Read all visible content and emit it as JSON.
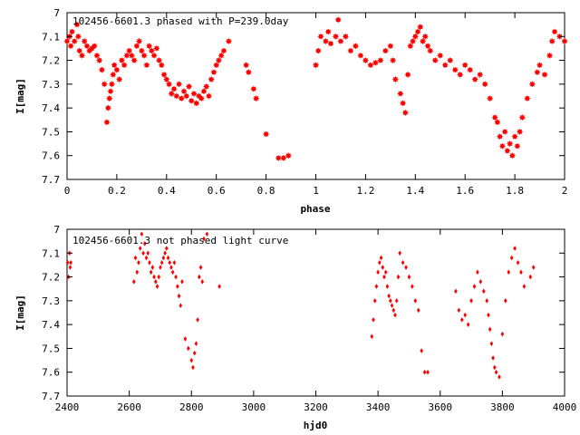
{
  "chart_data": [
    {
      "type": "scatter",
      "title": "102456-6601.3 phased with P=239.0day",
      "xlabel": "phase",
      "ylabel": "I[mag]",
      "xlim": [
        0,
        2
      ],
      "ylim": [
        7.7,
        7.0
      ],
      "y_inverted": true,
      "grid": false,
      "marker": "star",
      "color": "#ff0000",
      "xticks": [
        "0",
        "0.2",
        "0.4",
        "0.6",
        "0.8",
        "1",
        "1.2",
        "1.4",
        "1.6",
        "1.8",
        "2"
      ],
      "yticks": [
        "7",
        "7.1",
        "7.2",
        "7.3",
        "7.4",
        "7.5",
        "7.6",
        "7.7"
      ],
      "series": [
        {
          "x": [
            0.0,
            0.01,
            0.015,
            0.02,
            0.03,
            0.04,
            0.045,
            0.05,
            0.06,
            0.07,
            0.08,
            0.09,
            0.1,
            0.11,
            0.12,
            0.13,
            0.14,
            0.15,
            0.16,
            0.165,
            0.17,
            0.175,
            0.18,
            0.185,
            0.19,
            0.2,
            0.21,
            0.22,
            0.23,
            0.24,
            0.25,
            0.26,
            0.27,
            0.28,
            0.29,
            0.3,
            0.31,
            0.32,
            0.33,
            0.34,
            0.35,
            0.36,
            0.37,
            0.38,
            0.39,
            0.4,
            0.41,
            0.42,
            0.43,
            0.44,
            0.45,
            0.46,
            0.47,
            0.48,
            0.49,
            0.5,
            0.51,
            0.52,
            0.53,
            0.54,
            0.55,
            0.56,
            0.57,
            0.58,
            0.59,
            0.6,
            0.61,
            0.62,
            0.63,
            0.65,
            0.72,
            0.73,
            0.75,
            0.76,
            0.8,
            0.85,
            0.87,
            0.89,
            1.0,
            1.01,
            1.02,
            1.04,
            1.05,
            1.06,
            1.08,
            1.09,
            1.1,
            1.12,
            1.14,
            1.16,
            1.18,
            1.2,
            1.22,
            1.24,
            1.26,
            1.28,
            1.3,
            1.31,
            1.32,
            1.34,
            1.35,
            1.36,
            1.37,
            1.38,
            1.39,
            1.4,
            1.41,
            1.42,
            1.43,
            1.44,
            1.45,
            1.46,
            1.48,
            1.5,
            1.52,
            1.54,
            1.56,
            1.58,
            1.6,
            1.62,
            1.64,
            1.66,
            1.68,
            1.7,
            1.72,
            1.73,
            1.74,
            1.75,
            1.76,
            1.77,
            1.78,
            1.79,
            1.8,
            1.81,
            1.82,
            1.83,
            1.85,
            1.87,
            1.89,
            1.9,
            1.92,
            1.94,
            1.95,
            1.96,
            1.98,
            2.0
          ],
          "y": [
            7.12,
            7.1,
            7.14,
            7.08,
            7.12,
            7.05,
            7.1,
            7.16,
            7.18,
            7.12,
            7.14,
            7.16,
            7.15,
            7.14,
            7.18,
            7.2,
            7.24,
            7.3,
            7.46,
            7.4,
            7.36,
            7.33,
            7.3,
            7.26,
            7.22,
            7.24,
            7.28,
            7.2,
            7.22,
            7.18,
            7.16,
            7.18,
            7.2,
            7.14,
            7.12,
            7.16,
            7.18,
            7.22,
            7.14,
            7.16,
            7.18,
            7.15,
            7.2,
            7.22,
            7.26,
            7.28,
            7.3,
            7.34,
            7.32,
            7.35,
            7.3,
            7.36,
            7.33,
            7.35,
            7.31,
            7.37,
            7.34,
            7.38,
            7.35,
            7.36,
            7.33,
            7.31,
            7.35,
            7.28,
            7.25,
            7.22,
            7.2,
            7.18,
            7.16,
            7.12,
            7.22,
            7.25,
            7.32,
            7.36,
            7.51,
            7.61,
            7.61,
            7.6,
            7.22,
            7.16,
            7.1,
            7.12,
            7.08,
            7.13,
            7.1,
            7.03,
            7.12,
            7.1,
            7.16,
            7.14,
            7.18,
            7.2,
            7.22,
            7.21,
            7.2,
            7.16,
            7.14,
            7.2,
            7.28,
            7.34,
            7.38,
            7.42,
            7.26,
            7.14,
            7.12,
            7.1,
            7.08,
            7.06,
            7.12,
            7.1,
            7.14,
            7.16,
            7.2,
            7.18,
            7.22,
            7.2,
            7.24,
            7.26,
            7.22,
            7.24,
            7.28,
            7.26,
            7.3,
            7.36,
            7.44,
            7.46,
            7.52,
            7.56,
            7.5,
            7.58,
            7.55,
            7.6,
            7.52,
            7.56,
            7.5,
            7.44,
            7.36,
            7.3,
            7.25,
            7.22,
            7.26,
            7.18,
            7.12,
            7.08,
            7.1,
            7.12
          ]
        }
      ]
    },
    {
      "type": "scatter",
      "title": "102456-6601.3 not phased light curve",
      "xlabel": "hjd0",
      "ylabel": "I[mag]",
      "xlim": [
        2400,
        4000
      ],
      "ylim": [
        7.7,
        7.0
      ],
      "y_inverted": true,
      "grid": false,
      "marker": "diamond",
      "color": "#ff0000",
      "xticks": [
        "2400",
        "2600",
        "2800",
        "3000",
        "3200",
        "3400",
        "3600",
        "3800",
        "4000"
      ],
      "yticks": [
        "7",
        "7.1",
        "7.2",
        "7.3",
        "7.4",
        "7.5",
        "7.6",
        "7.7"
      ],
      "series": [
        {
          "x": [
            2402,
            2405,
            2408,
            2410,
            2412,
            2615,
            2620,
            2625,
            2630,
            2635,
            2640,
            2645,
            2650,
            2655,
            2660,
            2665,
            2670,
            2675,
            2680,
            2685,
            2690,
            2695,
            2700,
            2705,
            2710,
            2715,
            2720,
            2725,
            2730,
            2735,
            2740,
            2745,
            2750,
            2755,
            2760,
            2765,
            2770,
            2780,
            2790,
            2800,
            2805,
            2810,
            2815,
            2820,
            2825,
            2830,
            2835,
            2840,
            2850,
            2890,
            3380,
            3385,
            3390,
            3395,
            3400,
            3405,
            3410,
            3415,
            3420,
            3425,
            3430,
            3435,
            3440,
            3445,
            3450,
            3455,
            3460,
            3465,
            3470,
            3480,
            3490,
            3500,
            3510,
            3520,
            3530,
            3540,
            3550,
            3560,
            3650,
            3660,
            3670,
            3680,
            3690,
            3700,
            3710,
            3720,
            3730,
            3740,
            3750,
            3755,
            3760,
            3765,
            3770,
            3775,
            3780,
            3790,
            3800,
            3810,
            3820,
            3830,
            3840,
            3850,
            3860,
            3870,
            3890,
            3900
          ],
          "y": [
            7.14,
            7.2,
            7.1,
            7.16,
            7.14,
            7.22,
            7.12,
            7.18,
            7.14,
            7.08,
            7.02,
            7.1,
            7.06,
            7.12,
            7.1,
            7.14,
            7.18,
            7.16,
            7.2,
            7.22,
            7.24,
            7.2,
            7.16,
            7.14,
            7.12,
            7.1,
            7.08,
            7.12,
            7.14,
            7.16,
            7.18,
            7.14,
            7.2,
            7.24,
            7.28,
            7.32,
            7.22,
            7.46,
            7.5,
            7.55,
            7.58,
            7.52,
            7.48,
            7.38,
            7.2,
            7.16,
            7.22,
            7.04,
            7.02,
            7.24,
            7.45,
            7.38,
            7.3,
            7.24,
            7.18,
            7.14,
            7.12,
            7.16,
            7.2,
            7.18,
            7.24,
            7.28,
            7.3,
            7.32,
            7.34,
            7.36,
            7.3,
            7.2,
            7.1,
            7.14,
            7.16,
            7.2,
            7.24,
            7.3,
            7.34,
            7.51,
            7.6,
            7.6,
            7.26,
            7.34,
            7.38,
            7.36,
            7.4,
            7.3,
            7.24,
            7.18,
            7.22,
            7.26,
            7.3,
            7.36,
            7.42,
            7.48,
            7.54,
            7.58,
            7.6,
            7.62,
            7.44,
            7.3,
            7.18,
            7.12,
            7.08,
            7.14,
            7.18,
            7.24,
            7.2,
            7.16
          ]
        }
      ]
    }
  ]
}
